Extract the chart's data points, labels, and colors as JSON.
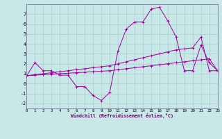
{
  "xlabel": "Windchill (Refroidissement éolien,°C)",
  "bg_color": "#c8e8e8",
  "grid_color": "#aacccc",
  "line_color": "#990099",
  "xlim": [
    0,
    23
  ],
  "ylim": [
    -2.5,
    8.0
  ],
  "xticks": [
    0,
    1,
    2,
    3,
    4,
    5,
    6,
    7,
    8,
    9,
    10,
    11,
    12,
    13,
    14,
    15,
    16,
    17,
    18,
    19,
    20,
    21,
    22,
    23
  ],
  "yticks": [
    -2,
    -1,
    0,
    1,
    2,
    3,
    4,
    5,
    6,
    7
  ],
  "line1_x": [
    0,
    1,
    2,
    3,
    4,
    5,
    6,
    7,
    8,
    9,
    10,
    11,
    12,
    13,
    14,
    15,
    16,
    17,
    18,
    19,
    20,
    21,
    22,
    23
  ],
  "line1_y": [
    0.8,
    2.1,
    1.3,
    1.3,
    0.85,
    0.85,
    -0.3,
    -0.3,
    -1.2,
    -1.7,
    -0.9,
    3.3,
    5.5,
    6.2,
    6.2,
    7.5,
    7.7,
    6.3,
    4.7,
    1.3,
    1.3,
    3.9,
    2.1,
    1.3
  ],
  "line2_x": [
    0,
    1,
    2,
    3,
    4,
    5,
    6,
    7,
    8,
    9,
    10,
    11,
    12,
    13,
    14,
    15,
    16,
    17,
    18,
    19,
    20,
    21,
    22,
    23
  ],
  "line2_y": [
    0.8,
    0.9,
    1.0,
    1.1,
    1.2,
    1.3,
    1.4,
    1.5,
    1.6,
    1.7,
    1.8,
    2.0,
    2.2,
    2.4,
    2.6,
    2.8,
    3.0,
    3.2,
    3.4,
    3.5,
    3.6,
    4.7,
    1.3,
    1.3
  ],
  "line3_x": [
    0,
    1,
    2,
    3,
    4,
    5,
    6,
    7,
    8,
    9,
    10,
    11,
    12,
    13,
    14,
    15,
    16,
    17,
    18,
    19,
    20,
    21,
    22,
    23
  ],
  "line3_y": [
    0.8,
    0.85,
    0.9,
    0.95,
    1.0,
    1.05,
    1.1,
    1.15,
    1.2,
    1.25,
    1.3,
    1.4,
    1.5,
    1.6,
    1.7,
    1.8,
    1.9,
    2.0,
    2.1,
    2.2,
    2.3,
    2.4,
    2.5,
    1.3
  ]
}
